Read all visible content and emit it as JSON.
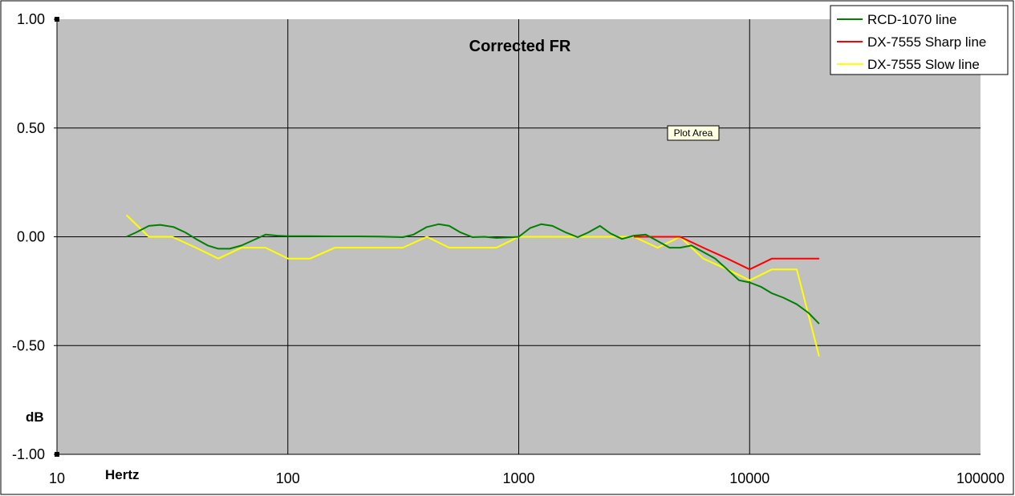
{
  "chart_data": {
    "type": "line",
    "title": "Corrected FR",
    "xlabel": "Hertz",
    "ylabel": "dB",
    "x_scale": "log",
    "xlim": [
      10,
      100000
    ],
    "ylim": [
      -1.0,
      1.0
    ],
    "x_ticks": [
      "10",
      "100",
      "1000",
      "10000",
      "100000"
    ],
    "y_ticks": [
      "1.00",
      "0.50",
      "0.00",
      "-0.50",
      "-1.00"
    ],
    "grid": true,
    "legend_position": "top-right",
    "plot_background": "#c0c0c0",
    "series": [
      {
        "name": "RCD-1070 line",
        "color": "#008000",
        "x": [
          20,
          22,
          25,
          28,
          32,
          36,
          40,
          45,
          50,
          56,
          63,
          71,
          80,
          90,
          100,
          125,
          160,
          200,
          250,
          315,
          350,
          400,
          450,
          500,
          560,
          630,
          710,
          800,
          900,
          1000,
          1120,
          1250,
          1400,
          1600,
          1800,
          2000,
          2250,
          2500,
          2800,
          3150,
          3550,
          4000,
          4500,
          5000,
          5600,
          6300,
          7100,
          8000,
          9000,
          10000,
          11200,
          12500,
          14000,
          16000,
          18000,
          20000
        ],
        "y": [
          0.0,
          0.02,
          0.05,
          0.055,
          0.045,
          0.02,
          -0.01,
          -0.04,
          -0.055,
          -0.055,
          -0.04,
          -0.015,
          0.01,
          0.005,
          0.003,
          0.003,
          0.002,
          0.002,
          0.001,
          -0.002,
          0.01,
          0.045,
          0.058,
          0.05,
          0.02,
          -0.002,
          0.0,
          -0.005,
          -0.003,
          0.0,
          0.04,
          0.058,
          0.05,
          0.02,
          -0.002,
          0.02,
          0.05,
          0.015,
          -0.01,
          0.005,
          0.01,
          -0.02,
          -0.05,
          -0.05,
          -0.04,
          -0.07,
          -0.1,
          -0.15,
          -0.2,
          -0.21,
          -0.23,
          -0.26,
          -0.28,
          -0.31,
          -0.35,
          -0.4
        ]
      },
      {
        "name": "DX-7555 Sharp line",
        "color": "#ff0000",
        "x": [
          3150,
          4000,
          5000,
          6300,
          8000,
          10000,
          12500,
          16000,
          20000
        ],
        "y": [
          0.0,
          0.0,
          0.0,
          -0.05,
          -0.1,
          -0.15,
          -0.1,
          -0.1,
          -0.1
        ]
      },
      {
        "name": "DX-7555 Slow line",
        "color": "#ffff00",
        "x": [
          20,
          25,
          31.5,
          40,
          50,
          63,
          80,
          100,
          125,
          160,
          200,
          250,
          315,
          400,
          500,
          630,
          800,
          1000,
          1250,
          1600,
          2000,
          2500,
          3150,
          4000,
          5000,
          6300,
          8000,
          10000,
          12500,
          16000,
          20000
        ],
        "y": [
          0.1,
          0.0,
          0.0,
          -0.05,
          -0.1,
          -0.05,
          -0.05,
          -0.1,
          -0.1,
          -0.05,
          -0.05,
          -0.05,
          -0.05,
          0.0,
          -0.05,
          -0.05,
          -0.05,
          0.0,
          0.0,
          0.0,
          0.0,
          0.0,
          0.0,
          -0.05,
          0.0,
          -0.1,
          -0.15,
          -0.2,
          -0.15,
          -0.15,
          -0.55
        ]
      }
    ]
  },
  "tooltip": {
    "label": "Plot Area"
  }
}
